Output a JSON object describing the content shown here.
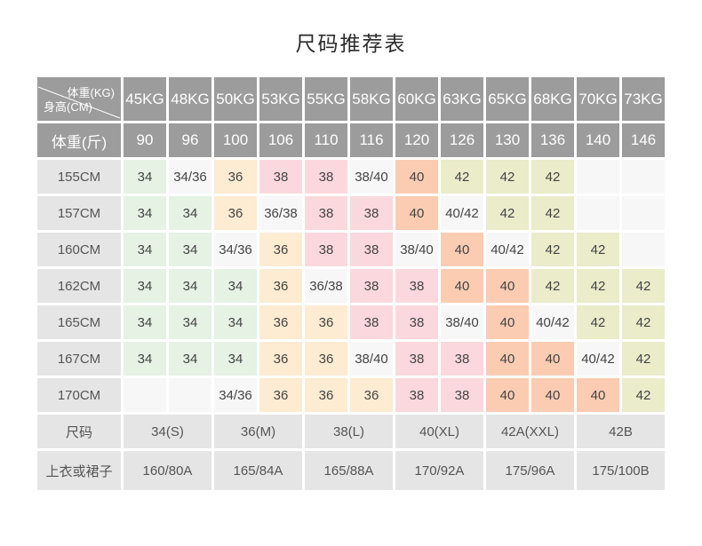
{
  "title": "尺码推荐表",
  "colors": {
    "header_bg": "#9c9c9c",
    "header_text": "#ffffff",
    "label_bg": "#e5e5e5",
    "label_text": "#555555",
    "cell_text": "#444444",
    "cells": {
      "green": "#e5f2e4",
      "neutral": "#f7f7f7",
      "peach": "#fdebd2",
      "pink": "#fbd8dd",
      "salmon": "#fbccb2",
      "khaki": "#eaecca",
      "empty": "#f7f7f7"
    }
  },
  "table": {
    "corner": {
      "top_right": "体重(KG)",
      "bottom_left": "身高(CM)"
    },
    "weight_kg_headers": [
      "45KG",
      "48KG",
      "50KG",
      "53KG",
      "55KG",
      "58KG",
      "60KG",
      "63KG",
      "65KG",
      "68KG",
      "70KG",
      "73KG"
    ],
    "jin_label": "体重(斤)",
    "weight_jin_values": [
      "90",
      "96",
      "100",
      "106",
      "110",
      "116",
      "120",
      "126",
      "130",
      "136",
      "140",
      "146"
    ],
    "rows": [
      {
        "label": "155CM",
        "cells": [
          {
            "v": "34",
            "c": "green"
          },
          {
            "v": "34/36",
            "c": "neutral"
          },
          {
            "v": "36",
            "c": "peach"
          },
          {
            "v": "38",
            "c": "pink"
          },
          {
            "v": "38",
            "c": "pink"
          },
          {
            "v": "38/40",
            "c": "neutral"
          },
          {
            "v": "40",
            "c": "salmon"
          },
          {
            "v": "42",
            "c": "khaki"
          },
          {
            "v": "42",
            "c": "khaki"
          },
          {
            "v": "42",
            "c": "khaki"
          },
          {
            "v": "",
            "c": "empty"
          },
          {
            "v": "",
            "c": "empty"
          }
        ]
      },
      {
        "label": "157CM",
        "cells": [
          {
            "v": "34",
            "c": "green"
          },
          {
            "v": "34",
            "c": "green"
          },
          {
            "v": "36",
            "c": "peach"
          },
          {
            "v": "36/38",
            "c": "neutral"
          },
          {
            "v": "38",
            "c": "pink"
          },
          {
            "v": "38",
            "c": "pink"
          },
          {
            "v": "40",
            "c": "salmon"
          },
          {
            "v": "40/42",
            "c": "neutral"
          },
          {
            "v": "42",
            "c": "khaki"
          },
          {
            "v": "42",
            "c": "khaki"
          },
          {
            "v": "",
            "c": "empty"
          },
          {
            "v": "",
            "c": "empty"
          }
        ]
      },
      {
        "label": "160CM",
        "cells": [
          {
            "v": "34",
            "c": "green"
          },
          {
            "v": "34",
            "c": "green"
          },
          {
            "v": "34/36",
            "c": "neutral"
          },
          {
            "v": "36",
            "c": "peach"
          },
          {
            "v": "38",
            "c": "pink"
          },
          {
            "v": "38",
            "c": "pink"
          },
          {
            "v": "38/40",
            "c": "neutral"
          },
          {
            "v": "40",
            "c": "salmon"
          },
          {
            "v": "40/42",
            "c": "neutral"
          },
          {
            "v": "42",
            "c": "khaki"
          },
          {
            "v": "42",
            "c": "khaki"
          },
          {
            "v": "",
            "c": "empty"
          }
        ]
      },
      {
        "label": "162CM",
        "cells": [
          {
            "v": "34",
            "c": "green"
          },
          {
            "v": "34",
            "c": "green"
          },
          {
            "v": "34",
            "c": "green"
          },
          {
            "v": "36",
            "c": "peach"
          },
          {
            "v": "36/38",
            "c": "neutral"
          },
          {
            "v": "38",
            "c": "pink"
          },
          {
            "v": "38",
            "c": "pink"
          },
          {
            "v": "40",
            "c": "salmon"
          },
          {
            "v": "40",
            "c": "salmon"
          },
          {
            "v": "42",
            "c": "khaki"
          },
          {
            "v": "42",
            "c": "khaki"
          },
          {
            "v": "42",
            "c": "khaki"
          }
        ]
      },
      {
        "label": "165CM",
        "cells": [
          {
            "v": "34",
            "c": "green"
          },
          {
            "v": "34",
            "c": "green"
          },
          {
            "v": "34",
            "c": "green"
          },
          {
            "v": "36",
            "c": "peach"
          },
          {
            "v": "36",
            "c": "peach"
          },
          {
            "v": "38",
            "c": "pink"
          },
          {
            "v": "38",
            "c": "pink"
          },
          {
            "v": "38/40",
            "c": "neutral"
          },
          {
            "v": "40",
            "c": "salmon"
          },
          {
            "v": "40/42",
            "c": "neutral"
          },
          {
            "v": "42",
            "c": "khaki"
          },
          {
            "v": "42",
            "c": "khaki"
          }
        ]
      },
      {
        "label": "167CM",
        "cells": [
          {
            "v": "34",
            "c": "green"
          },
          {
            "v": "34",
            "c": "green"
          },
          {
            "v": "34",
            "c": "green"
          },
          {
            "v": "36",
            "c": "peach"
          },
          {
            "v": "36",
            "c": "peach"
          },
          {
            "v": "38/40",
            "c": "neutral"
          },
          {
            "v": "38",
            "c": "pink"
          },
          {
            "v": "38",
            "c": "pink"
          },
          {
            "v": "40",
            "c": "salmon"
          },
          {
            "v": "40",
            "c": "salmon"
          },
          {
            "v": "40/42",
            "c": "neutral"
          },
          {
            "v": "42",
            "c": "khaki"
          }
        ]
      },
      {
        "label": "170CM",
        "cells": [
          {
            "v": "",
            "c": "empty"
          },
          {
            "v": "",
            "c": "empty"
          },
          {
            "v": "34/36",
            "c": "neutral"
          },
          {
            "v": "36",
            "c": "peach"
          },
          {
            "v": "36",
            "c": "peach"
          },
          {
            "v": "36",
            "c": "peach"
          },
          {
            "v": "38",
            "c": "pink"
          },
          {
            "v": "38",
            "c": "pink"
          },
          {
            "v": "40",
            "c": "salmon"
          },
          {
            "v": "40",
            "c": "salmon"
          },
          {
            "v": "40",
            "c": "salmon"
          },
          {
            "v": "42",
            "c": "khaki"
          }
        ]
      }
    ],
    "size_row": {
      "label": "尺码",
      "values": [
        "34(S)",
        "36(M)",
        "38(L)",
        "40(XL)",
        "42A(XXL)",
        "42B"
      ]
    },
    "garment_row": {
      "label": "上衣或裙子",
      "values": [
        "160/80A",
        "165/84A",
        "165/88A",
        "170/92A",
        "175/96A",
        "175/100B"
      ]
    }
  }
}
